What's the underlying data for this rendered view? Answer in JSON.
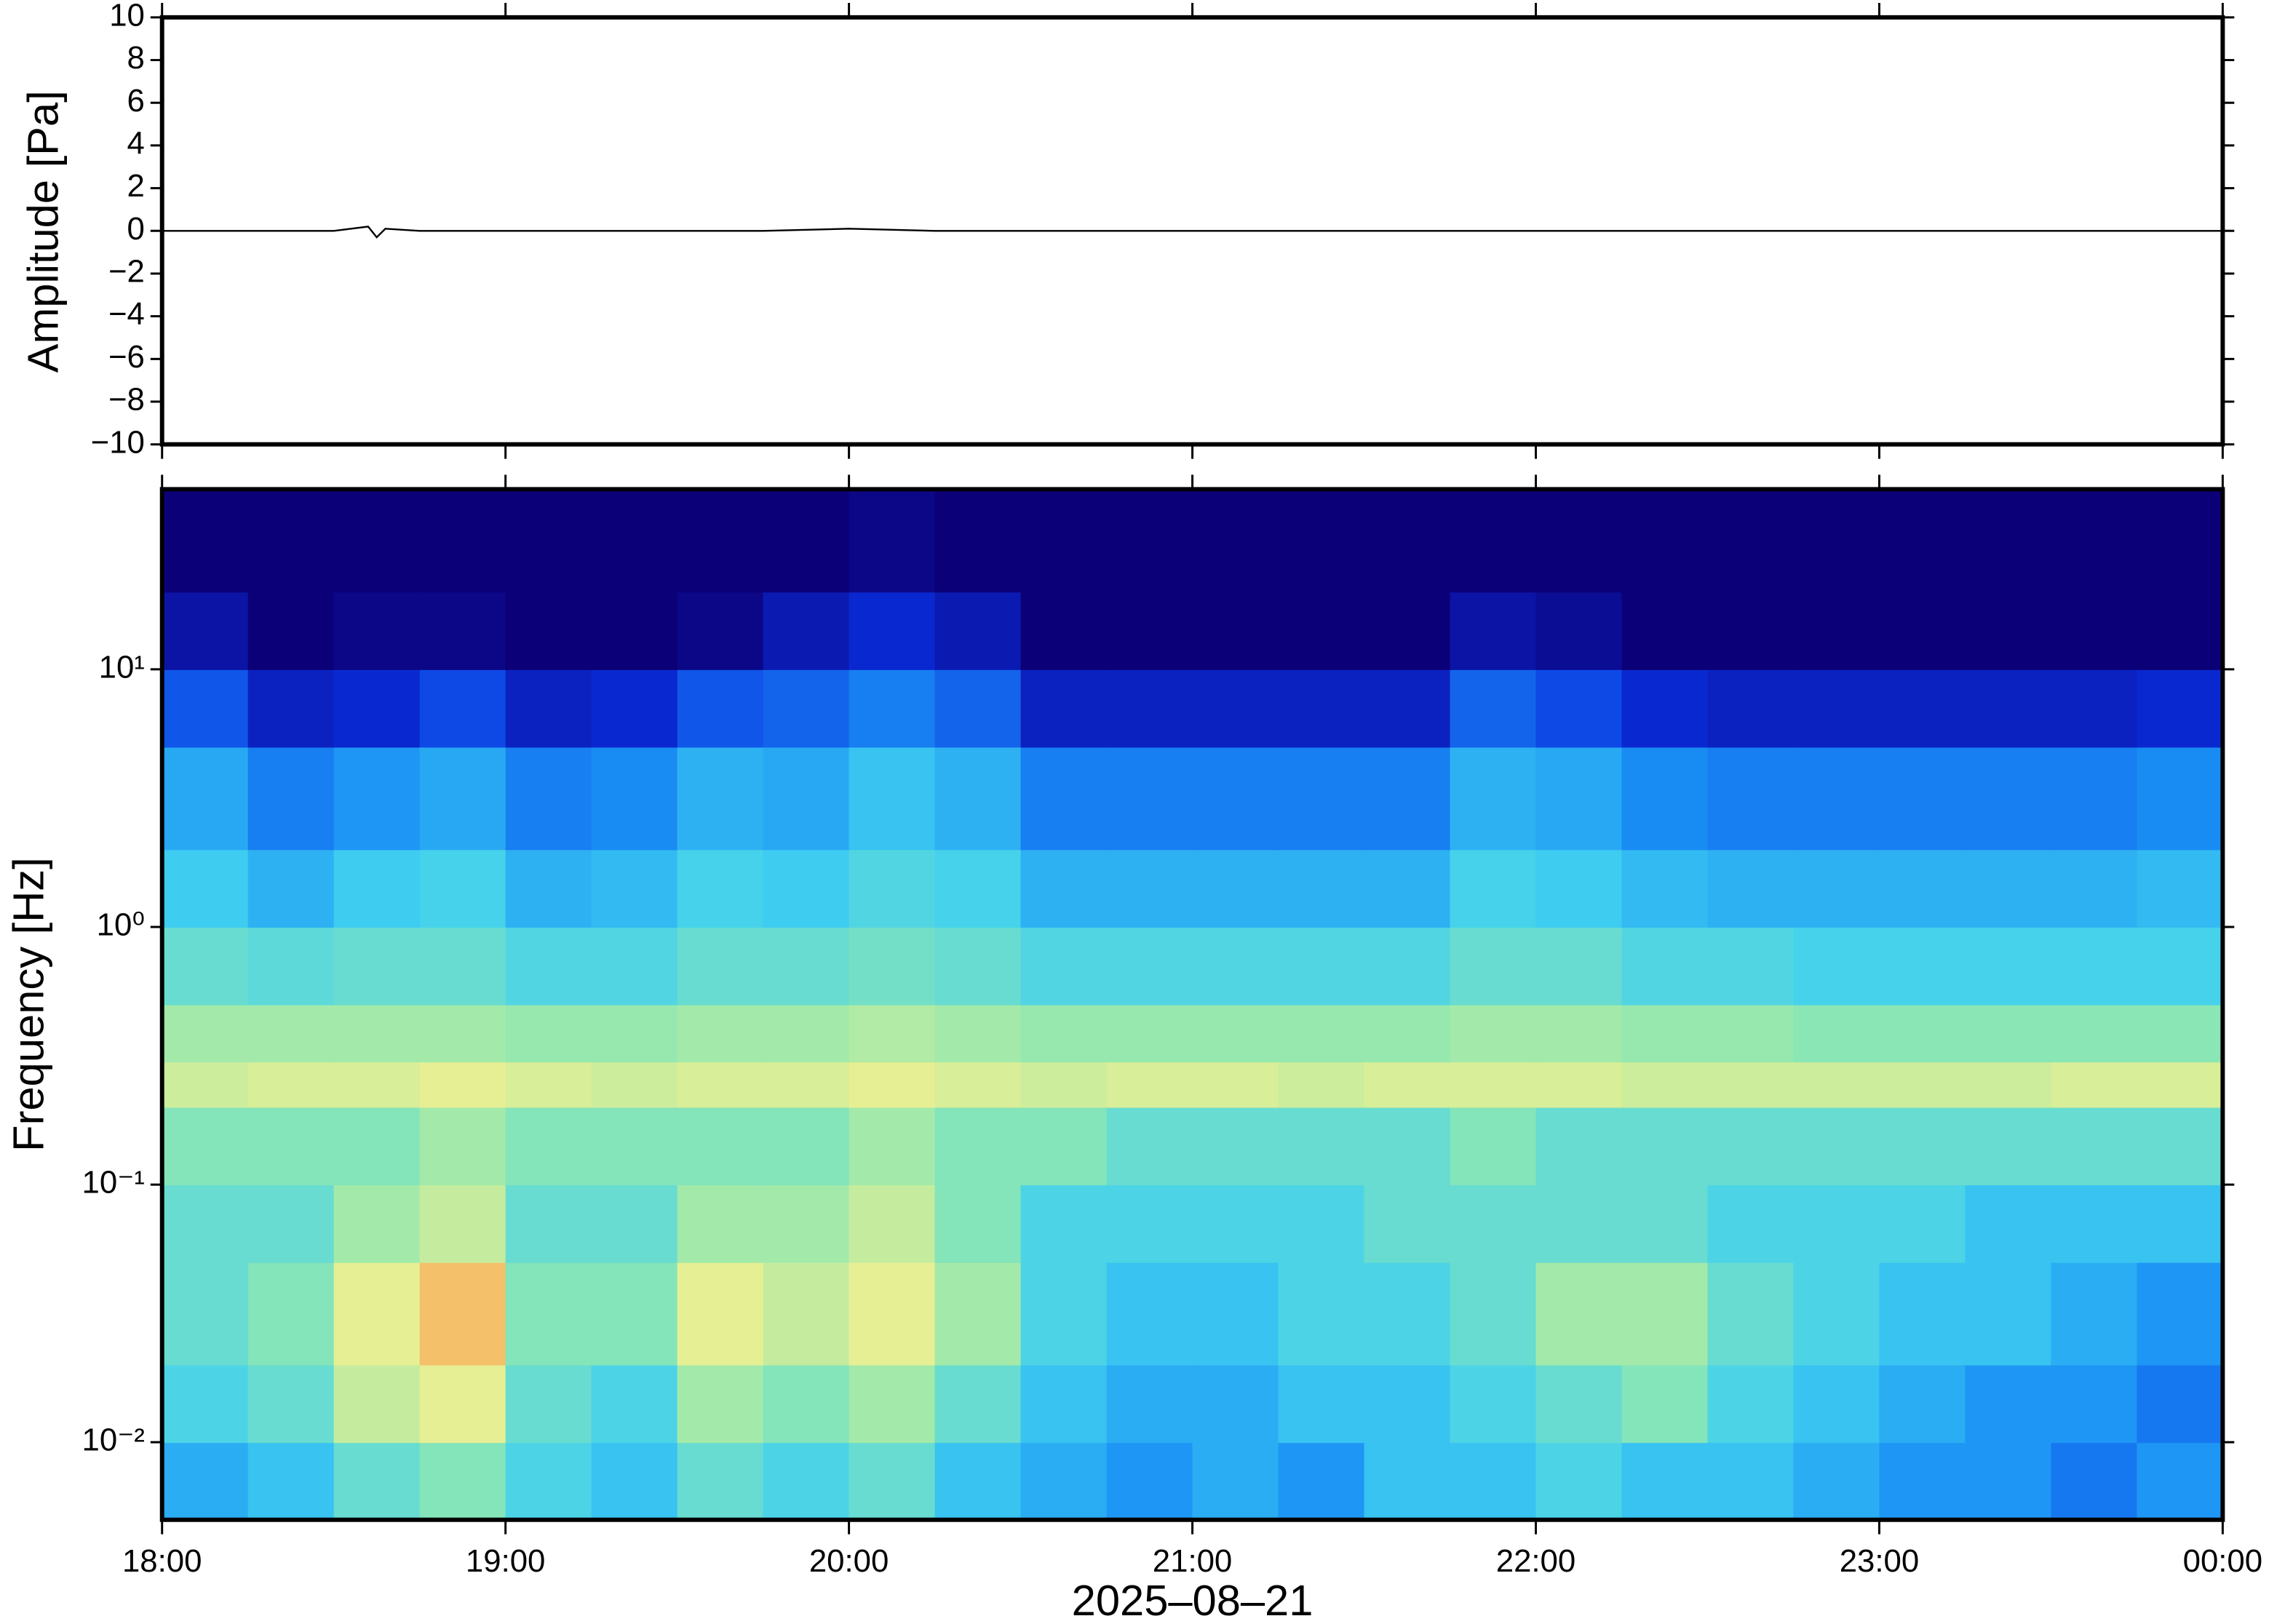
{
  "chart_data": [
    {
      "type": "line",
      "ylabel": "Amplitude [Pa]",
      "xlim": [
        18,
        24
      ],
      "xticks": [
        {
          "value": 18,
          "label": "18:00"
        },
        {
          "value": 19,
          "label": "19:00"
        },
        {
          "value": 20,
          "label": "20:00"
        },
        {
          "value": 21,
          "label": "21:00"
        },
        {
          "value": 22,
          "label": "22:00"
        },
        {
          "value": 23,
          "label": "23:00"
        },
        {
          "value": 24,
          "label": "00:00"
        }
      ],
      "ylim": [
        -10,
        10
      ],
      "yticks": [
        {
          "value": -10,
          "label": "−10"
        },
        {
          "value": -8,
          "label": "−8"
        },
        {
          "value": -6,
          "label": "−6"
        },
        {
          "value": -4,
          "label": "−4"
        },
        {
          "value": -2,
          "label": "−2"
        },
        0,
        2,
        4,
        6,
        8,
        10
      ],
      "series": [
        {
          "color": "#000000",
          "x": [
            18,
            18.25,
            18.5,
            18.6,
            18.625,
            18.65,
            18.75,
            19,
            19.25,
            19.5,
            19.75,
            20,
            20.25,
            20.5,
            20.75,
            21,
            21.25,
            21.5,
            21.75,
            22,
            22.25,
            22.5,
            22.75,
            23,
            23.25,
            23.5,
            23.75,
            24
          ],
          "values": [
            0,
            0,
            0,
            0.2,
            -0.3,
            0.1,
            0,
            0,
            0,
            0,
            0,
            0.1,
            0,
            0,
            0,
            0,
            0,
            0,
            0,
            0,
            0,
            0,
            0,
            0,
            0,
            0,
            0,
            0
          ]
        }
      ]
    },
    {
      "type": "heatmap",
      "ylabel": "Frequency [Hz]",
      "xlabel": "2025–08–21",
      "log_y": true,
      "xlim": [
        18,
        24
      ],
      "xticks": [
        {
          "value": 18,
          "label": "18:00"
        },
        {
          "value": 19,
          "label": "19:00"
        },
        {
          "value": 20,
          "label": "20:00"
        },
        {
          "value": 21,
          "label": "21:00"
        },
        {
          "value": 22,
          "label": "22:00"
        },
        {
          "value": 23,
          "label": "23:00"
        },
        {
          "value": 24,
          "label": "00:00"
        }
      ],
      "ylim": [
        0.005,
        50
      ],
      "yticks": [
        {
          "value": 0.01,
          "label": "10⁻²"
        },
        {
          "value": 0.1,
          "label": "10⁻¹"
        },
        {
          "value": 1,
          "label": "10⁰"
        },
        {
          "value": 10,
          "label": "10¹"
        }
      ],
      "colormap": [
        "#0c0078",
        "#0a30e0",
        "#1a90f5",
        "#40d0f0",
        "#90e8b0",
        "#f0f090",
        "#f8a050",
        "#e84030"
      ],
      "x_edges": [
        18,
        18.25,
        18.5,
        18.75,
        19,
        19.25,
        19.5,
        19.75,
        20,
        20.25,
        20.5,
        20.75,
        21,
        21.25,
        21.5,
        21.75,
        22,
        22.25,
        22.5,
        22.75,
        23,
        23.25,
        23.5,
        23.75,
        24
      ],
      "y_edges": [
        0.005,
        0.01,
        0.02,
        0.05,
        0.1,
        0.2,
        0.3,
        0.5,
        1,
        2,
        5,
        10,
        20,
        50
      ],
      "z": [
        [
          0.35,
          0.4,
          0.5,
          0.55,
          0.45,
          0.4,
          0.5,
          0.45,
          0.5,
          0.4,
          0.35,
          0.3,
          0.35,
          0.3,
          0.4,
          0.4,
          0.45,
          0.4,
          0.4,
          0.35,
          0.3,
          0.3,
          0.25,
          0.3
        ],
        [
          0.45,
          0.5,
          0.65,
          0.7,
          0.5,
          0.45,
          0.6,
          0.55,
          0.6,
          0.5,
          0.4,
          0.35,
          0.35,
          0.4,
          0.4,
          0.45,
          0.5,
          0.55,
          0.45,
          0.4,
          0.35,
          0.3,
          0.3,
          0.25
        ],
        [
          0.5,
          0.55,
          0.7,
          0.8,
          0.55,
          0.55,
          0.7,
          0.65,
          0.7,
          0.6,
          0.45,
          0.4,
          0.4,
          0.45,
          0.45,
          0.5,
          0.6,
          0.6,
          0.5,
          0.45,
          0.4,
          0.4,
          0.35,
          0.3
        ],
        [
          0.5,
          0.5,
          0.6,
          0.65,
          0.5,
          0.5,
          0.6,
          0.6,
          0.65,
          0.55,
          0.45,
          0.45,
          0.45,
          0.45,
          0.5,
          0.5,
          0.5,
          0.5,
          0.45,
          0.45,
          0.45,
          0.4,
          0.4,
          0.4
        ],
        [
          0.55,
          0.55,
          0.55,
          0.6,
          0.55,
          0.55,
          0.55,
          0.55,
          0.6,
          0.55,
          0.55,
          0.5,
          0.5,
          0.5,
          0.5,
          0.55,
          0.5,
          0.5,
          0.5,
          0.5,
          0.5,
          0.5,
          0.5,
          0.5
        ],
        [
          0.66,
          0.68,
          0.68,
          0.7,
          0.68,
          0.66,
          0.68,
          0.68,
          0.7,
          0.68,
          0.66,
          0.68,
          0.68,
          0.66,
          0.68,
          0.68,
          0.68,
          0.66,
          0.66,
          0.66,
          0.66,
          0.66,
          0.68,
          0.68
        ],
        [
          0.6,
          0.6,
          0.6,
          0.6,
          0.58,
          0.58,
          0.6,
          0.6,
          0.62,
          0.6,
          0.58,
          0.58,
          0.58,
          0.58,
          0.58,
          0.6,
          0.6,
          0.58,
          0.58,
          0.56,
          0.56,
          0.56,
          0.56,
          0.56
        ],
        [
          0.5,
          0.48,
          0.5,
          0.5,
          0.46,
          0.46,
          0.5,
          0.5,
          0.52,
          0.5,
          0.46,
          0.46,
          0.46,
          0.46,
          0.46,
          0.5,
          0.5,
          0.46,
          0.46,
          0.44,
          0.44,
          0.44,
          0.44,
          0.44
        ],
        [
          0.42,
          0.36,
          0.42,
          0.44,
          0.36,
          0.38,
          0.44,
          0.42,
          0.46,
          0.44,
          0.36,
          0.36,
          0.36,
          0.36,
          0.36,
          0.44,
          0.42,
          0.38,
          0.36,
          0.36,
          0.36,
          0.36,
          0.36,
          0.38
        ],
        [
          0.34,
          0.26,
          0.3,
          0.34,
          0.26,
          0.28,
          0.36,
          0.34,
          0.4,
          0.36,
          0.26,
          0.26,
          0.26,
          0.26,
          0.26,
          0.36,
          0.34,
          0.28,
          0.26,
          0.26,
          0.26,
          0.26,
          0.26,
          0.28
        ],
        [
          0.2,
          0.1,
          0.12,
          0.18,
          0.1,
          0.12,
          0.2,
          0.22,
          0.26,
          0.22,
          0.1,
          0.1,
          0.1,
          0.1,
          0.1,
          0.22,
          0.18,
          0.12,
          0.1,
          0.1,
          0.1,
          0.1,
          0.1,
          0.12
        ],
        [
          0.06,
          0,
          0.02,
          0.02,
          0,
          0,
          0.02,
          0.08,
          0.12,
          0.08,
          0,
          0,
          0,
          0,
          0,
          0.06,
          0.04,
          0,
          0,
          0,
          0,
          0,
          0,
          0
        ],
        [
          0,
          0,
          0,
          0,
          0,
          0,
          0,
          0,
          0.02,
          0,
          0,
          0,
          0,
          0,
          0,
          0,
          0,
          0,
          0,
          0,
          0,
          0,
          0,
          0
        ]
      ]
    }
  ]
}
